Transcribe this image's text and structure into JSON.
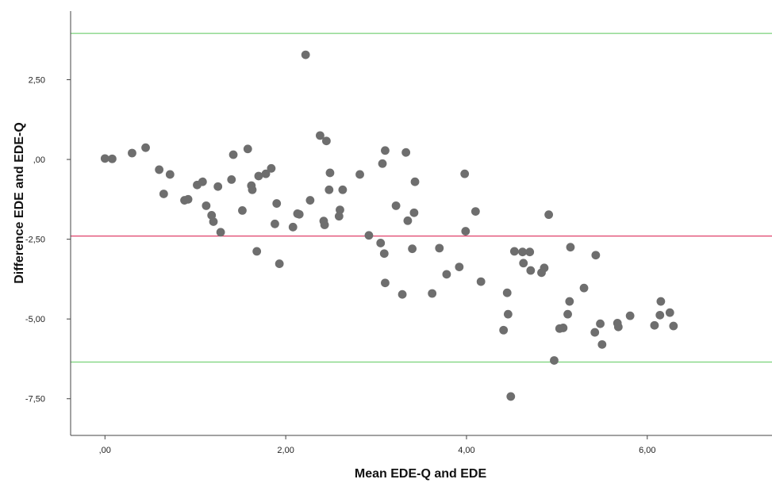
{
  "chart_data": {
    "type": "scatter",
    "title": "",
    "xlabel": "Mean EDE-Q and EDE",
    "ylabel": "Difference EDE and EDE-Q",
    "xlim": [
      -0.38,
      7.38
    ],
    "ylim": [
      -8.65,
      4.65
    ],
    "x_ticks": [
      0,
      2,
      4,
      6
    ],
    "x_tick_labels": [
      ",00",
      "2,00",
      "4,00",
      "6,00"
    ],
    "y_ticks": [
      2.5,
      0,
      -2.5,
      -5,
      -7.5
    ],
    "y_tick_labels": [
      "2,50",
      ",00",
      "-2,50",
      "-5,00",
      "-7,50"
    ],
    "grid": false,
    "legend": "none",
    "reference_lines": [
      {
        "name": "upper limit",
        "y": 3.95,
        "color": "#79d279"
      },
      {
        "name": "mean difference",
        "y": -2.4,
        "color": "#e0406a"
      },
      {
        "name": "lower limit",
        "y": -6.35,
        "color": "#79d279"
      }
    ],
    "point_color": "#6e6e6e",
    "points": [
      {
        "x": 0.0,
        "y": 0.03
      },
      {
        "x": 0.08,
        "y": 0.02
      },
      {
        "x": 0.3,
        "y": 0.2
      },
      {
        "x": 0.45,
        "y": 0.37
      },
      {
        "x": 0.6,
        "y": -0.32
      },
      {
        "x": 0.65,
        "y": -1.08
      },
      {
        "x": 0.72,
        "y": -0.47
      },
      {
        "x": 0.88,
        "y": -1.28
      },
      {
        "x": 0.92,
        "y": -1.25
      },
      {
        "x": 1.02,
        "y": -0.8
      },
      {
        "x": 1.08,
        "y": -0.7
      },
      {
        "x": 1.12,
        "y": -1.45
      },
      {
        "x": 1.18,
        "y": -1.75
      },
      {
        "x": 1.2,
        "y": -1.95
      },
      {
        "x": 1.25,
        "y": -0.85
      },
      {
        "x": 1.28,
        "y": -2.28
      },
      {
        "x": 1.4,
        "y": -0.63
      },
      {
        "x": 1.42,
        "y": 0.15
      },
      {
        "x": 1.52,
        "y": -1.6
      },
      {
        "x": 1.58,
        "y": 0.33
      },
      {
        "x": 1.62,
        "y": -0.82
      },
      {
        "x": 1.63,
        "y": -0.95
      },
      {
        "x": 1.68,
        "y": -2.88
      },
      {
        "x": 1.7,
        "y": -0.52
      },
      {
        "x": 1.78,
        "y": -0.45
      },
      {
        "x": 1.84,
        "y": -0.28
      },
      {
        "x": 1.88,
        "y": -2.02
      },
      {
        "x": 1.9,
        "y": -1.38
      },
      {
        "x": 1.93,
        "y": -3.27
      },
      {
        "x": 2.08,
        "y": -2.12
      },
      {
        "x": 2.13,
        "y": -1.7
      },
      {
        "x": 2.15,
        "y": -1.72
      },
      {
        "x": 2.22,
        "y": 3.28
      },
      {
        "x": 2.27,
        "y": -1.28
      },
      {
        "x": 2.38,
        "y": 0.75
      },
      {
        "x": 2.42,
        "y": -1.93
      },
      {
        "x": 2.43,
        "y": -2.05
      },
      {
        "x": 2.45,
        "y": 0.58
      },
      {
        "x": 2.48,
        "y": -0.95
      },
      {
        "x": 2.49,
        "y": -0.42
      },
      {
        "x": 2.59,
        "y": -1.78
      },
      {
        "x": 2.6,
        "y": -1.58
      },
      {
        "x": 2.63,
        "y": -0.95
      },
      {
        "x": 2.82,
        "y": -0.47
      },
      {
        "x": 2.92,
        "y": -2.38
      },
      {
        "x": 3.05,
        "y": -2.62
      },
      {
        "x": 3.07,
        "y": -0.13
      },
      {
        "x": 3.09,
        "y": -2.95
      },
      {
        "x": 3.1,
        "y": 0.28
      },
      {
        "x": 3.1,
        "y": -3.87
      },
      {
        "x": 3.22,
        "y": -1.45
      },
      {
        "x": 3.29,
        "y": -4.23
      },
      {
        "x": 3.33,
        "y": 0.22
      },
      {
        "x": 3.35,
        "y": -1.92
      },
      {
        "x": 3.4,
        "y": -2.8
      },
      {
        "x": 3.42,
        "y": -1.67
      },
      {
        "x": 3.43,
        "y": -0.7
      },
      {
        "x": 3.62,
        "y": -4.2
      },
      {
        "x": 3.7,
        "y": -2.78
      },
      {
        "x": 3.78,
        "y": -3.6
      },
      {
        "x": 3.92,
        "y": -3.37
      },
      {
        "x": 3.98,
        "y": -0.45
      },
      {
        "x": 3.99,
        "y": -2.25
      },
      {
        "x": 4.1,
        "y": -1.63
      },
      {
        "x": 4.16,
        "y": -3.83
      },
      {
        "x": 4.41,
        "y": -5.35
      },
      {
        "x": 4.45,
        "y": -4.18
      },
      {
        "x": 4.46,
        "y": -4.85
      },
      {
        "x": 4.49,
        "y": -7.43
      },
      {
        "x": 4.53,
        "y": -2.88
      },
      {
        "x": 4.62,
        "y": -2.9
      },
      {
        "x": 4.63,
        "y": -3.25
      },
      {
        "x": 4.7,
        "y": -2.9
      },
      {
        "x": 4.71,
        "y": -3.48
      },
      {
        "x": 4.83,
        "y": -3.55
      },
      {
        "x": 4.86,
        "y": -3.4
      },
      {
        "x": 4.91,
        "y": -1.73
      },
      {
        "x": 4.97,
        "y": -6.3
      },
      {
        "x": 5.03,
        "y": -5.3
      },
      {
        "x": 5.07,
        "y": -5.28
      },
      {
        "x": 5.12,
        "y": -4.85
      },
      {
        "x": 5.14,
        "y": -4.45
      },
      {
        "x": 5.15,
        "y": -2.75
      },
      {
        "x": 5.3,
        "y": -4.03
      },
      {
        "x": 5.42,
        "y": -5.42
      },
      {
        "x": 5.43,
        "y": -3.0
      },
      {
        "x": 5.48,
        "y": -5.15
      },
      {
        "x": 5.5,
        "y": -5.8
      },
      {
        "x": 5.67,
        "y": -5.13
      },
      {
        "x": 5.68,
        "y": -5.25
      },
      {
        "x": 5.81,
        "y": -4.9
      },
      {
        "x": 6.08,
        "y": -5.2
      },
      {
        "x": 6.14,
        "y": -4.88
      },
      {
        "x": 6.15,
        "y": -4.45
      },
      {
        "x": 6.25,
        "y": -4.8
      },
      {
        "x": 6.29,
        "y": -5.22
      }
    ]
  }
}
